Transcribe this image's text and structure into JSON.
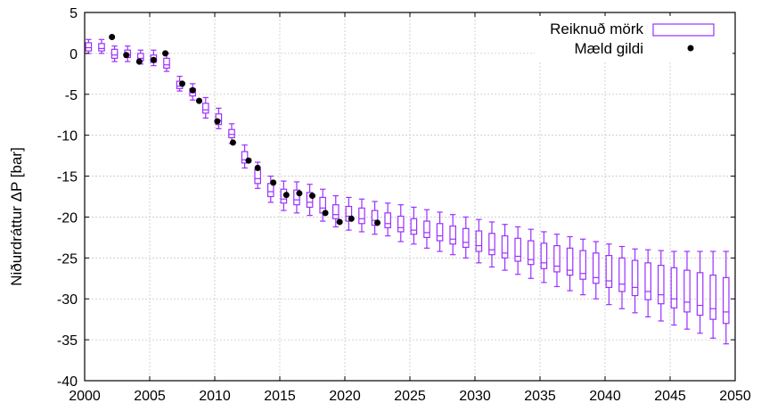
{
  "chart_data": {
    "type": "box",
    "ylabel": "Niðurdráttur ΔP [bar]",
    "xlim": [
      2000,
      2050
    ],
    "ylim": [
      -40,
      5
    ],
    "xticks": [
      "2000",
      "2005",
      "2010",
      "2015",
      "2020",
      "2025",
      "2030",
      "2035",
      "2040",
      "2045",
      "2050"
    ],
    "yticks": [
      "5",
      "0",
      "-5",
      "-10",
      "-15",
      "-20",
      "-25",
      "-30",
      "-35",
      "-40"
    ],
    "grid": true,
    "legend": {
      "position": "top-right",
      "entries": [
        "Reiknuð mörk",
        "Mæld gildi"
      ]
    },
    "colors": {
      "box": "#9b30ff",
      "point": "#000000",
      "grid": "#c8c8c8"
    },
    "series": [
      {
        "name": "Reiknuð mörk",
        "kind": "box",
        "x": [
          2000.3,
          2001.3,
          2002.3,
          2003.3,
          2004.3,
          2005.3,
          2006.3,
          2007.3,
          2008.3,
          2009.3,
          2010.3,
          2011.3,
          2012.3,
          2013.3,
          2014.3,
          2015.3,
          2016.3,
          2017.3,
          2018.3,
          2019.3,
          2020.3,
          2021.3,
          2022.3,
          2023.3,
          2024.3,
          2025.3,
          2026.3,
          2027.3,
          2028.3,
          2029.3,
          2030.3,
          2031.3,
          2032.3,
          2033.3,
          2034.3,
          2035.3,
          2036.3,
          2037.3,
          2038.3,
          2039.3,
          2040.3,
          2041.3,
          2042.3,
          2043.3,
          2044.3,
          2045.3,
          2046.3,
          2047.3,
          2048.3,
          2049.3
        ],
        "whisker_low": [
          0.0,
          0.0,
          -1.0,
          -1.0,
          -1.3,
          -1.5,
          -2.2,
          -4.6,
          -5.7,
          -7.9,
          -9.2,
          -11.0,
          -14.0,
          -16.5,
          -18.2,
          -19.2,
          -19.5,
          -19.8,
          -20.5,
          -21.2,
          -21.6,
          -21.8,
          -22.1,
          -22.3,
          -23.0,
          -23.3,
          -23.8,
          -24.2,
          -24.6,
          -25.0,
          -25.6,
          -26.1,
          -26.5,
          -27.0,
          -27.5,
          -28.0,
          -28.5,
          -29.0,
          -29.5,
          -30.0,
          -30.7,
          -31.2,
          -31.7,
          -32.2,
          -32.7,
          -33.2,
          -33.7,
          -34.2,
          -34.8,
          -35.5
        ],
        "q1": [
          0.3,
          0.3,
          -0.6,
          -0.5,
          -0.9,
          -1.1,
          -1.8,
          -4.3,
          -5.2,
          -7.3,
          -8.7,
          -10.3,
          -13.4,
          -15.9,
          -17.5,
          -18.3,
          -18.5,
          -18.8,
          -19.5,
          -20.2,
          -20.5,
          -20.8,
          -21.0,
          -21.3,
          -21.8,
          -22.1,
          -22.5,
          -22.9,
          -23.3,
          -23.7,
          -24.2,
          -24.6,
          -25.0,
          -25.4,
          -25.8,
          -26.3,
          -26.7,
          -27.1,
          -27.6,
          -28.1,
          -28.6,
          -29.1,
          -29.6,
          -30.1,
          -30.6,
          -31.1,
          -31.6,
          -32.0,
          -32.5,
          -33.0
        ],
        "median": [
          0.7,
          0.6,
          -0.2,
          -0.2,
          -0.6,
          -0.8,
          -1.4,
          -4.0,
          -4.8,
          -6.9,
          -8.2,
          -9.9,
          -13.0,
          -15.3,
          -16.9,
          -17.8,
          -17.9,
          -18.2,
          -18.9,
          -19.7,
          -19.9,
          -20.2,
          -20.4,
          -20.8,
          -21.3,
          -21.6,
          -21.9,
          -22.3,
          -22.7,
          -23.1,
          -23.5,
          -24.0,
          -24.4,
          -24.8,
          -25.2,
          -25.6,
          -26.0,
          -26.5,
          -26.9,
          -27.4,
          -27.8,
          -28.2,
          -28.6,
          -29.1,
          -29.5,
          -30.0,
          -30.4,
          -30.8,
          -31.2,
          -31.6
        ],
        "q3": [
          1.3,
          1.2,
          0.5,
          0.4,
          0.0,
          -0.2,
          -0.6,
          -3.4,
          -4.3,
          -6.1,
          -7.4,
          -9.3,
          -12.0,
          -14.2,
          -15.9,
          -16.6,
          -16.7,
          -17.0,
          -17.6,
          -18.5,
          -18.7,
          -18.9,
          -19.2,
          -19.5,
          -19.9,
          -20.2,
          -20.5,
          -20.8,
          -21.1,
          -21.4,
          -21.7,
          -22.0,
          -22.3,
          -22.6,
          -22.9,
          -23.2,
          -23.5,
          -23.8,
          -24.1,
          -24.4,
          -24.7,
          -25.0,
          -25.3,
          -25.6,
          -25.9,
          -26.2,
          -26.5,
          -26.8,
          -27.1,
          -27.4
        ],
        "whisker_high": [
          1.7,
          1.7,
          0.9,
          0.9,
          0.4,
          0.4,
          0.0,
          -2.8,
          -3.7,
          -5.4,
          -6.7,
          -8.6,
          -11.2,
          -13.3,
          -15.0,
          -15.6,
          -15.7,
          -16.0,
          -16.6,
          -17.4,
          -17.6,
          -17.8,
          -18.1,
          -18.3,
          -18.5,
          -18.8,
          -19.1,
          -19.4,
          -19.7,
          -20.0,
          -20.3,
          -20.6,
          -20.9,
          -21.2,
          -21.5,
          -21.8,
          -22.1,
          -22.4,
          -22.7,
          -23.0,
          -23.3,
          -23.6,
          -23.9,
          -24.0,
          -24.1,
          -24.2,
          -24.2,
          -24.2,
          -24.2,
          -24.2
        ]
      },
      {
        "name": "Mæld gildi",
        "kind": "scatter",
        "x": [
          2002.1,
          2003.2,
          2004.2,
          2005.3,
          2006.2,
          2007.5,
          2008.3,
          2008.8,
          2010.2,
          2011.4,
          2012.6,
          2013.3,
          2014.5,
          2015.5,
          2016.5,
          2017.5,
          2018.5,
          2019.6,
          2020.5,
          2022.5
        ],
        "y": [
          2.0,
          -0.2,
          -1.0,
          -0.8,
          0.0,
          -3.7,
          -4.5,
          -5.8,
          -8.3,
          -10.9,
          -13.1,
          -14.0,
          -15.8,
          -17.3,
          -17.1,
          -17.4,
          -19.5,
          -20.6,
          -20.2,
          -20.7
        ]
      }
    ]
  }
}
